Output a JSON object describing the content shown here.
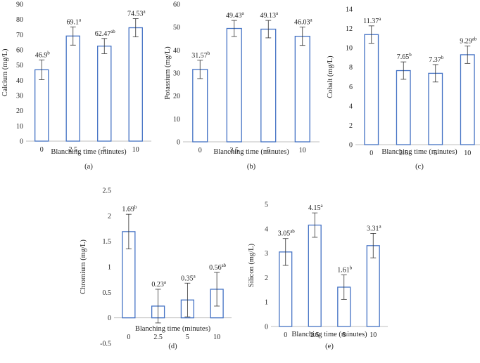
{
  "colors": {
    "bar_stroke": "#4472C4",
    "bar_fill": "#ffffff",
    "axis": "#bfbfbf",
    "error": "#333333",
    "text": "#222222"
  },
  "chart_data": [
    {
      "panel": "(a)",
      "type": "bar",
      "ylabel": "Calcium (mg/L)",
      "xlabel": "Blanching time (minutes)",
      "categories": [
        "0",
        "2.5",
        "5",
        "10"
      ],
      "values": [
        46.9,
        69.1,
        62.47,
        74.53
      ],
      "errors": [
        6.5,
        6.0,
        5.0,
        6.0
      ],
      "value_labels": [
        "46.9",
        "69.1",
        "62.47",
        "74.53"
      ],
      "superscripts": [
        "b",
        "a",
        "ab",
        "a"
      ],
      "ylim": [
        0,
        90
      ],
      "yticks": [
        "0",
        "10",
        "20",
        "30",
        "40",
        "50",
        "60",
        "70",
        "80",
        "90"
      ],
      "yticks_num": [
        0,
        10,
        20,
        30,
        40,
        50,
        60,
        70,
        80,
        90
      ]
    },
    {
      "panel": "(b)",
      "type": "bar",
      "ylabel": "Potassium (mg/L)",
      "xlabel": "Blanching time (minutes)",
      "categories": [
        "0",
        "2.5",
        "5",
        "10"
      ],
      "values": [
        31.57,
        49.43,
        49.13,
        46.03
      ],
      "errors": [
        4.0,
        3.5,
        3.8,
        4.0
      ],
      "value_labels": [
        "31.57",
        "49.43",
        "49.13",
        "46.03"
      ],
      "superscripts": [
        "b",
        "a",
        "a",
        "a"
      ],
      "ylim": [
        0,
        60
      ],
      "yticks": [
        "0",
        "10",
        "20",
        "30",
        "40",
        "50",
        "60"
      ],
      "yticks_num": [
        0,
        10,
        20,
        30,
        40,
        50,
        60
      ]
    },
    {
      "panel": "(c)",
      "type": "bar",
      "ylabel": "Cobalt (mg/L)",
      "xlabel": "Blanching time (minutes)",
      "categories": [
        "0",
        "2.5",
        "5",
        "10"
      ],
      "values": [
        11.37,
        7.65,
        7.37,
        9.29
      ],
      "errors": [
        0.9,
        0.9,
        0.9,
        0.9
      ],
      "value_labels": [
        "11.37",
        "7.65",
        "7.37",
        "9.29"
      ],
      "superscripts": [
        "a",
        "b",
        "b",
        "ab"
      ],
      "ylim": [
        0,
        14
      ],
      "yticks": [
        "0",
        "2",
        "4",
        "6",
        "8",
        "10",
        "12",
        "14"
      ],
      "yticks_num": [
        0,
        2,
        4,
        6,
        8,
        10,
        12,
        14
      ]
    },
    {
      "panel": "(d)",
      "type": "bar",
      "ylabel": "Chromium (mg/L)",
      "xlabel": "Blanching time (minutes)",
      "categories": [
        "0",
        "2.5",
        "5",
        "10"
      ],
      "values": [
        1.69,
        0.23,
        0.35,
        0.56
      ],
      "errors": [
        0.34,
        0.33,
        0.33,
        0.33
      ],
      "value_labels": [
        "1.69",
        "0.23",
        "0.35",
        "0.56"
      ],
      "superscripts": [
        "b",
        "a",
        "a",
        "ab"
      ],
      "ylim": [
        -0.5,
        2.5
      ],
      "yticks": [
        "-0.5",
        "0",
        "0.5",
        "1",
        "1.5",
        "2",
        "2.5"
      ],
      "yticks_num": [
        -0.5,
        0,
        0.5,
        1,
        1.5,
        2,
        2.5
      ]
    },
    {
      "panel": "(e)",
      "type": "bar",
      "ylabel": "Silicon (mg/L)",
      "xlabel": "Blanching time (minutes)",
      "categories": [
        "0",
        "2.5",
        "5",
        "10"
      ],
      "values": [
        3.05,
        4.15,
        1.61,
        3.31
      ],
      "errors": [
        0.55,
        0.5,
        0.5,
        0.5
      ],
      "value_labels": [
        "3.05",
        "4.15",
        "1.61",
        "3.31"
      ],
      "superscripts": [
        "ab",
        "a",
        "b",
        "a"
      ],
      "ylim": [
        0,
        5
      ],
      "yticks": [
        "0",
        "1",
        "2",
        "3",
        "4",
        "5"
      ],
      "yticks_num": [
        0,
        1,
        2,
        3,
        4,
        5
      ]
    }
  ]
}
